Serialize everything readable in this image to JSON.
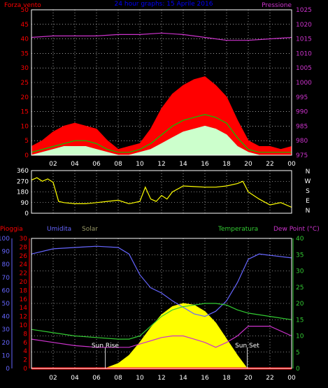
{
  "colors": {
    "background": "#000000",
    "frame": "#ffffff",
    "grid": "#ffffff",
    "wind_gust": "#ff0000",
    "wind_avg": "#00cc00",
    "wind_min": "#ccffcc",
    "pressure": "#cc33cc",
    "direction": "#ffff00",
    "humidity": "#6666ff",
    "temperature": "#33cc33",
    "dewpoint": "#cc33cc",
    "solar": "#ffff00",
    "rain": "#ff0000",
    "title": "#0000ff",
    "solar_label": "#999966"
  },
  "chart_data": [
    {
      "type": "line",
      "title": "24 hour graphs: 15 Aprile 2016",
      "left_label": "Forza vento",
      "right_label": "Pressione",
      "x_ticks": [
        "02",
        "04",
        "06",
        "08",
        "10",
        "12",
        "14",
        "16",
        "18",
        "20",
        "22",
        "00"
      ],
      "x_hours": [
        2,
        4,
        6,
        8,
        10,
        12,
        14,
        16,
        18,
        20,
        22,
        24
      ],
      "x_range": [
        0,
        24
      ],
      "ylim_left": [
        0,
        50
      ],
      "yticks_left": [
        0,
        5,
        10,
        15,
        20,
        25,
        30,
        35,
        40,
        45,
        50
      ],
      "ylim_right": [
        975,
        1025
      ],
      "yticks_right": [
        975,
        980,
        985,
        990,
        995,
        1000,
        1005,
        1010,
        1015,
        1020,
        1025
      ],
      "grid": true,
      "series": [
        {
          "key": "pressure",
          "axis": "right",
          "x": [
            0,
            2,
            4,
            6,
            8,
            10,
            12,
            14,
            16,
            18,
            20,
            22,
            24
          ],
          "y": [
            1015.5,
            1016,
            1016,
            1016,
            1016.5,
            1016.5,
            1017,
            1016.5,
            1015.5,
            1014.5,
            1014.5,
            1015,
            1015.5
          ]
        },
        {
          "key": "wind_gust",
          "axis": "left",
          "fill": true,
          "x": [
            0,
            1,
            2,
            3,
            4,
            5,
            6,
            7,
            8,
            9,
            10,
            11,
            12,
            13,
            14,
            15,
            16,
            17,
            18,
            19,
            20,
            21,
            22,
            23,
            24
          ],
          "y": [
            3,
            5,
            8,
            10,
            11,
            10,
            9,
            5,
            2,
            3,
            4,
            9,
            16,
            21,
            24,
            26,
            27,
            24,
            20,
            12,
            5,
            3,
            3,
            2,
            3
          ]
        },
        {
          "key": "wind_avg",
          "axis": "left",
          "x": [
            0,
            1,
            2,
            3,
            4,
            5,
            6,
            7,
            8,
            9,
            10,
            11,
            12,
            13,
            14,
            15,
            16,
            17,
            18,
            19,
            20,
            21,
            22,
            23,
            24
          ],
          "y": [
            1,
            2,
            3,
            4,
            5,
            5,
            4,
            2,
            1,
            1,
            2,
            4,
            7,
            10,
            12,
            13,
            14,
            13,
            11,
            6,
            2,
            1,
            1,
            1,
            1
          ]
        },
        {
          "key": "wind_min",
          "axis": "left",
          "fill": true,
          "x": [
            0,
            1,
            2,
            3,
            4,
            5,
            6,
            7,
            8,
            9,
            10,
            11,
            12,
            13,
            14,
            15,
            16,
            17,
            18,
            19,
            20,
            21,
            22,
            23,
            24
          ],
          "y": [
            0,
            1,
            2,
            3,
            3,
            3,
            2,
            1,
            0,
            0,
            1,
            2,
            4,
            6,
            8,
            9,
            10,
            9,
            7,
            3,
            1,
            0,
            0,
            0,
            0
          ]
        }
      ]
    },
    {
      "type": "line",
      "direction_labels": [
        "N",
        "W",
        "S",
        "E",
        "N"
      ],
      "ylim": [
        0,
        360
      ],
      "yticks": [
        0,
        90,
        180,
        270,
        360
      ],
      "x_range": [
        0,
        24
      ],
      "grid": true,
      "series": [
        {
          "key": "direction",
          "x": [
            0,
            0.5,
            1,
            1.5,
            2,
            2.5,
            3,
            4,
            5,
            6,
            7,
            8,
            9,
            10,
            10.5,
            11,
            11.5,
            12,
            12.5,
            13,
            14,
            15,
            16,
            17,
            18,
            19,
            19.5,
            20,
            21,
            22,
            23,
            24
          ],
          "y": [
            280,
            300,
            270,
            290,
            260,
            100,
            90,
            80,
            80,
            90,
            100,
            110,
            80,
            100,
            220,
            120,
            100,
            150,
            120,
            180,
            230,
            225,
            220,
            220,
            230,
            250,
            270,
            180,
            120,
            70,
            90,
            50
          ]
        }
      ]
    },
    {
      "type": "line",
      "legend": [
        "Pioggia",
        "Umidita",
        "Solar",
        "Temperatura",
        "Dew Point (°C)"
      ],
      "sun_rise_label": "Sun Rise",
      "sun_set_label": "Sun Set",
      "sun_rise_hour": 6.8,
      "sun_set_hour": 19.9,
      "x_range": [
        0,
        24
      ],
      "ylim_humidity": [
        0,
        100
      ],
      "yticks_humidity": [
        0,
        10,
        20,
        30,
        40,
        50,
        60,
        70,
        80,
        90,
        100
      ],
      "ylim_rain": [
        0,
        30
      ],
      "yticks_rain": [
        0,
        2,
        4,
        6,
        8,
        10,
        12,
        14,
        16,
        18,
        20,
        22,
        24,
        26,
        28,
        30
      ],
      "ylim_temp": [
        0,
        40
      ],
      "yticks_temp": [
        0,
        5,
        10,
        15,
        20,
        25,
        30,
        35,
        40
      ],
      "grid": true,
      "series": [
        {
          "key": "humidity",
          "axis": "humidity",
          "x": [
            0,
            2,
            4,
            6,
            8,
            9,
            10,
            11,
            12,
            13,
            14,
            15,
            16,
            17,
            18,
            19,
            20,
            21,
            22,
            24
          ],
          "y": [
            88,
            92,
            93,
            94,
            93,
            88,
            72,
            62,
            58,
            52,
            47,
            42,
            40,
            44,
            52,
            66,
            84,
            88,
            87,
            85
          ]
        },
        {
          "key": "temperature",
          "axis": "temp",
          "x": [
            0,
            2,
            4,
            6,
            8,
            9,
            10,
            11,
            12,
            13,
            14,
            15,
            16,
            17,
            18,
            19,
            20,
            22,
            24
          ],
          "y": [
            12,
            11,
            10,
            9.5,
            9,
            9,
            10,
            13,
            16,
            18,
            19,
            19.5,
            20,
            20,
            19.5,
            18,
            17,
            16,
            15
          ]
        },
        {
          "key": "dewpoint",
          "axis": "temp",
          "x": [
            0,
            2,
            4,
            6,
            8,
            9,
            10,
            11,
            12,
            13,
            14,
            15,
            16,
            17,
            18,
            19,
            20,
            22,
            24
          ],
          "y": [
            9,
            8,
            7,
            6.5,
            6.5,
            6.5,
            7.5,
            8.5,
            9.5,
            10,
            10,
            9,
            8,
            6.5,
            8,
            10,
            13,
            13,
            10
          ]
        },
        {
          "key": "solar",
          "axis": "temp",
          "fill": true,
          "x": [
            6.8,
            8,
            9,
            10,
            11,
            12,
            13,
            14,
            15,
            16,
            17,
            18,
            19,
            19.9
          ],
          "y": [
            0,
            1.5,
            4,
            8,
            12.5,
            16.5,
            19,
            20,
            19.5,
            17.5,
            14,
            9,
            4,
            0
          ]
        },
        {
          "key": "rain",
          "axis": "rain",
          "x": [
            0,
            24
          ],
          "y": [
            0,
            0
          ]
        }
      ]
    }
  ]
}
